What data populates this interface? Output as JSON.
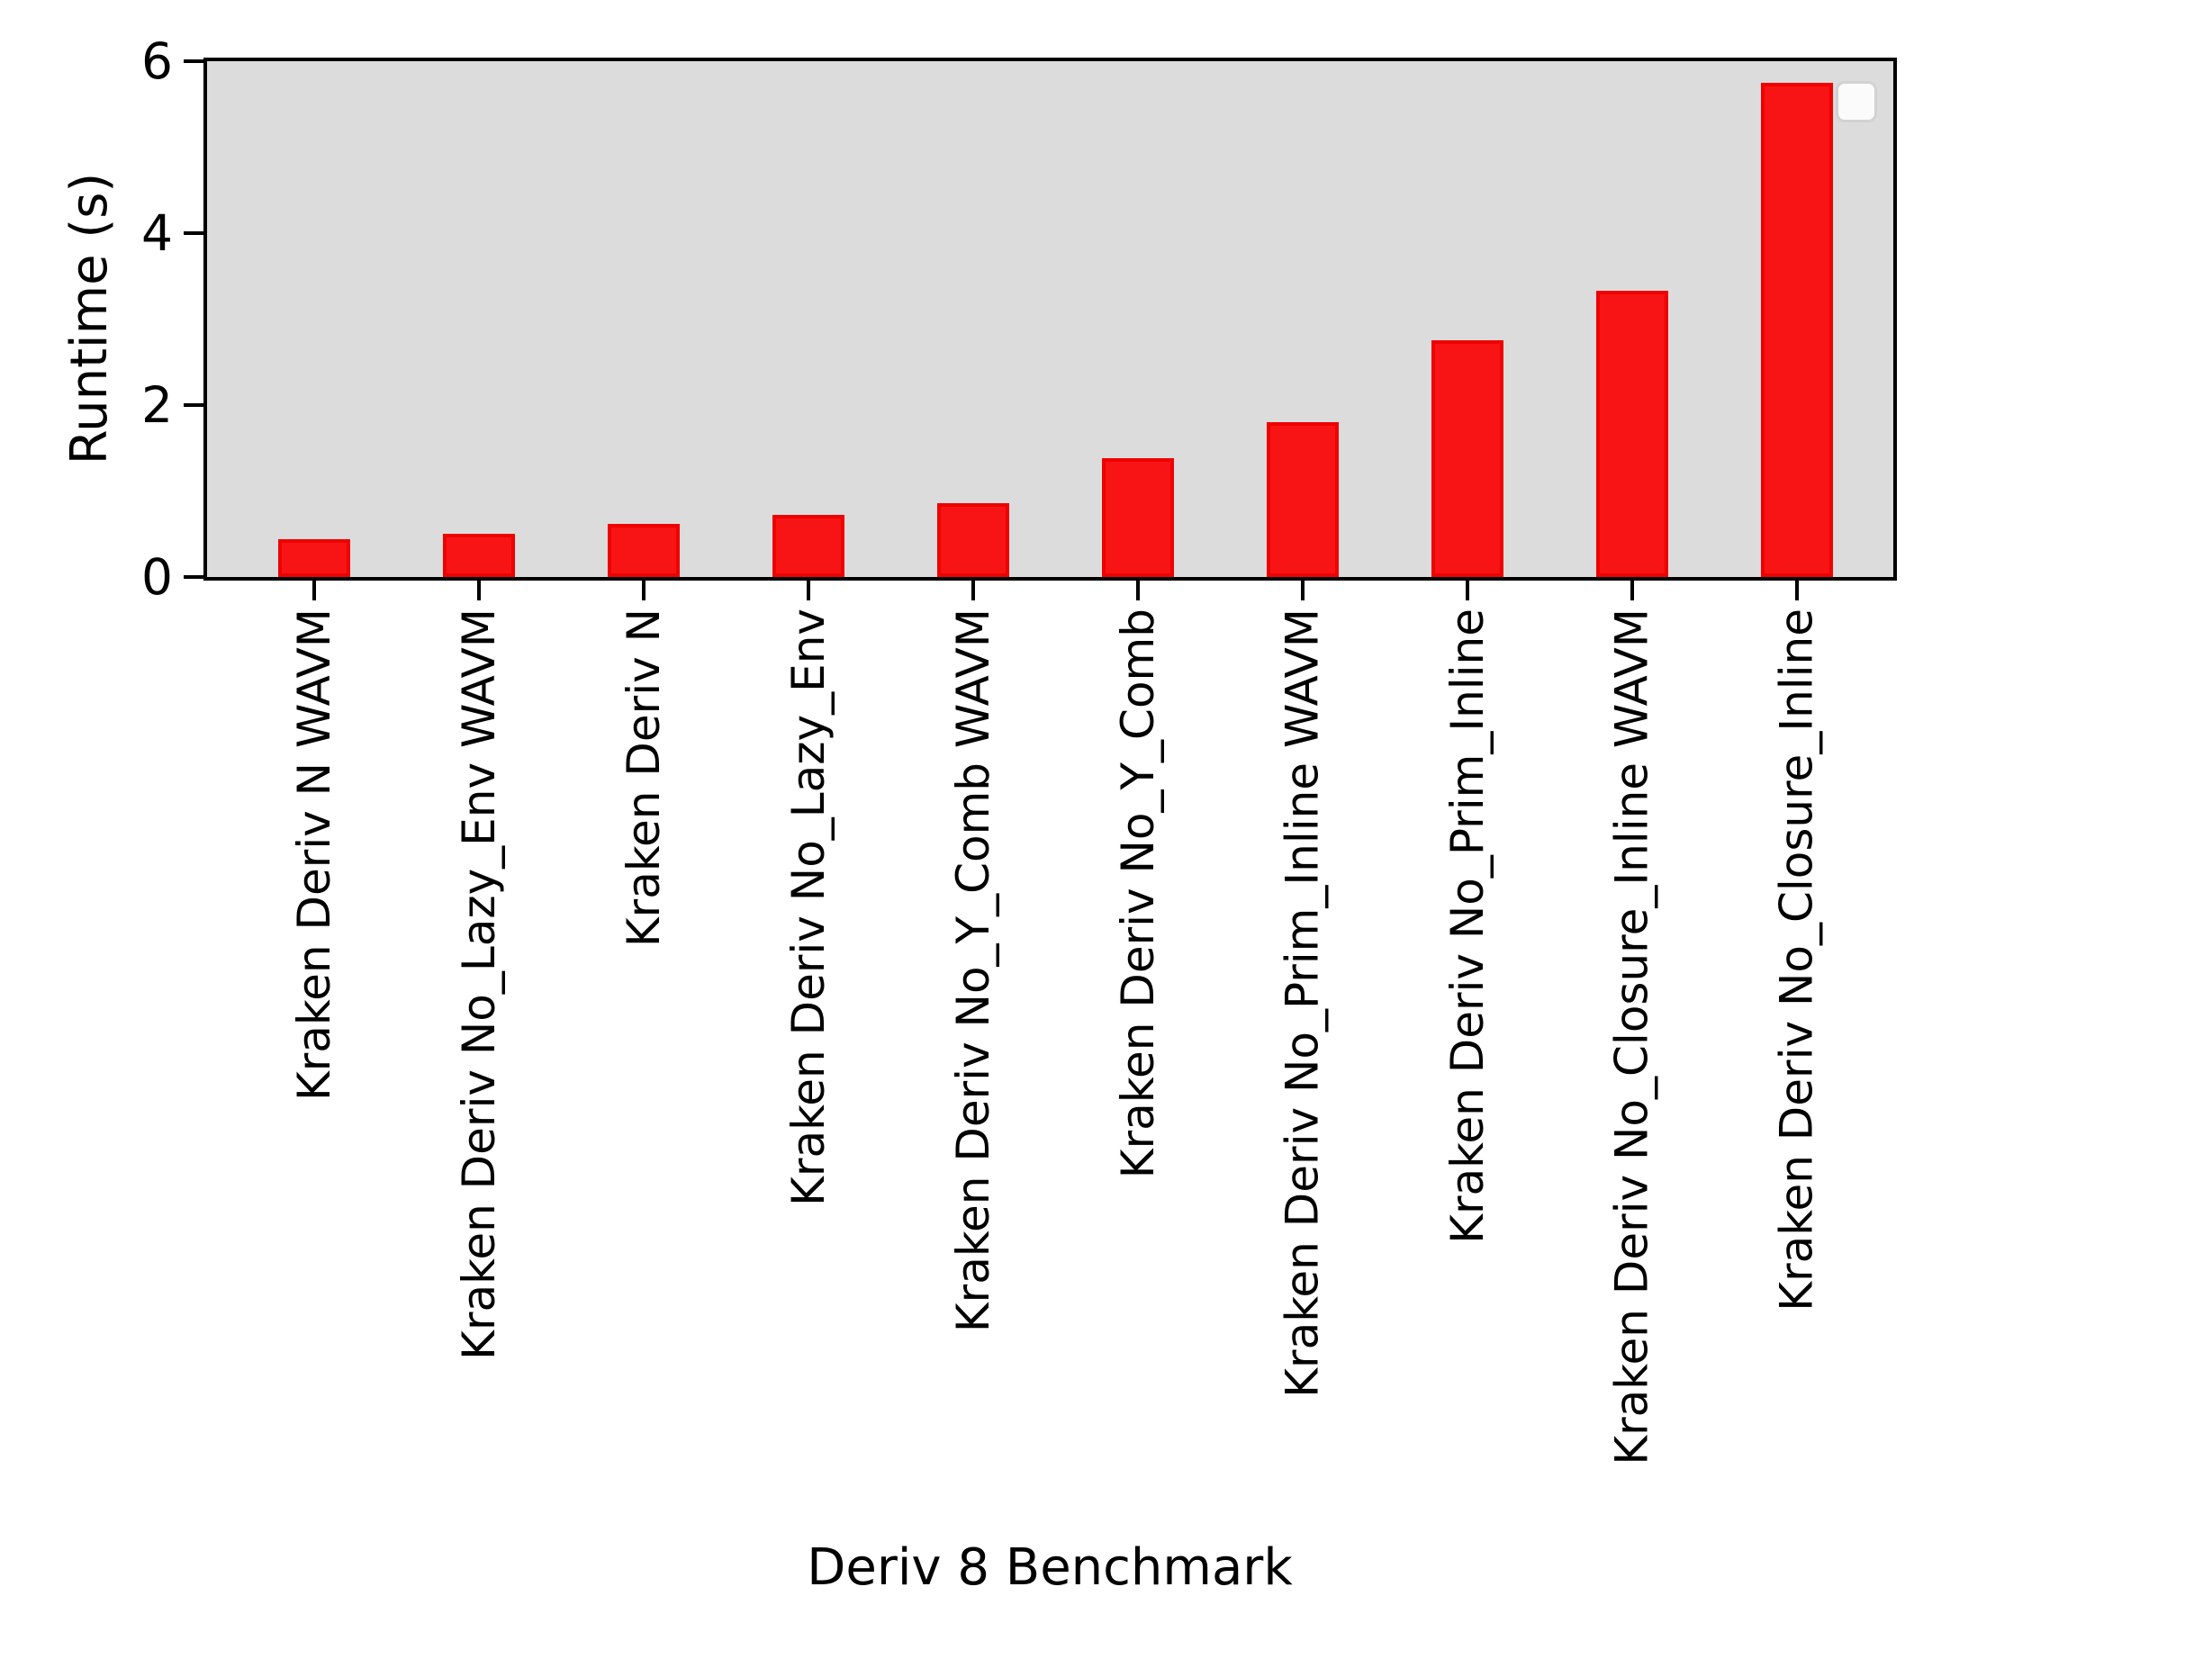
{
  "chart_data": {
    "type": "bar",
    "title": "",
    "xlabel": "Deriv 8 Benchmark",
    "ylabel": "Runtime (s)",
    "categories": [
      "Kraken Deriv N WAVM",
      "Kraken Deriv No_Lazy_Env WAVM",
      "Kraken Deriv N",
      "Kraken Deriv No_Lazy_Env",
      "Kraken Deriv No_Y_Comb WAVM",
      "Kraken Deriv No_Y_Comb",
      "Kraken Deriv No_Prim_Inline WAVM",
      "Kraken Deriv No_Prim_Inline",
      "Kraken Deriv No_Closure_Inline WAVM",
      "Kraken Deriv No_Closure_Inline"
    ],
    "values": [
      0.44,
      0.5,
      0.62,
      0.72,
      0.86,
      1.38,
      1.8,
      2.75,
      3.33,
      5.75
    ],
    "ylim": [
      0,
      6
    ],
    "yticks": [
      0,
      2,
      4,
      6
    ],
    "ytick_labels": [
      "0",
      "2",
      "4",
      "6"
    ],
    "xtick_rotation_deg": 90,
    "grid": false,
    "legend": {
      "visible": true,
      "entries": [],
      "position": "upper right"
    },
    "colors": {
      "figure_background": "#ffffff",
      "plot_background": "#dcdcdc",
      "bar_fill": "#f81414",
      "bar_edge": "#ee0202",
      "spine": "#000000",
      "text": "#000000",
      "legend_fill": "#fbfbfb",
      "legend_border": "#d2d2d2"
    }
  }
}
